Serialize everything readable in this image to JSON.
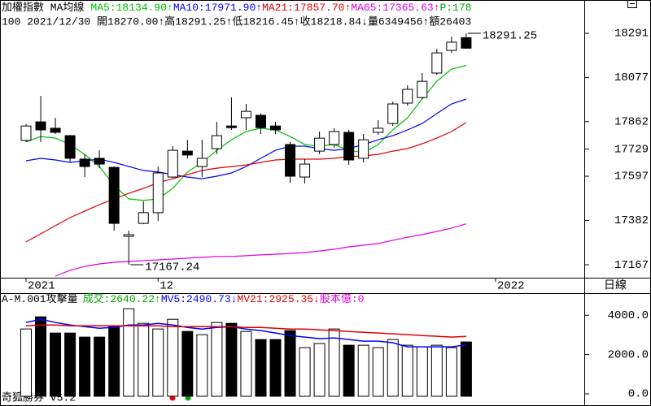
{
  "chart_data": [
    {
      "type": "candlestick",
      "title": "加權指數 MA均線",
      "info": "100 2021/12/30 開18270.00↑高18291.25↑低18216.45↑收18218.84↓量6349456↑額26403",
      "period": "日線",
      "extra_legend": {
        "text": "P:178",
        "color": "#00a800"
      },
      "annotations": [
        "18291.25",
        "17167.24"
      ],
      "categories": [
        "2021",
        null,
        null,
        null,
        null,
        null,
        null,
        null,
        null,
        "12",
        null,
        null,
        null,
        null,
        null,
        null,
        null,
        null,
        null,
        null,
        null,
        null,
        null,
        null,
        null,
        null,
        null,
        null,
        null,
        null,
        null,
        null,
        "2022",
        null,
        null,
        null,
        null,
        null,
        null
      ],
      "open": [
        17771,
        17861,
        17830,
        17794,
        17680,
        17684,
        17640,
        17305,
        17368,
        17420,
        17593,
        17719,
        17644,
        17731,
        17841,
        17881,
        17893,
        17841,
        17751,
        17593,
        17719,
        17751,
        17810,
        17684,
        17810,
        17853,
        17952,
        17979,
        18098,
        18208,
        18270.0,
        null,
        null,
        null,
        null,
        null,
        null,
        null,
        null
      ],
      "high": [
        17850,
        17987,
        17881,
        17798,
        17704,
        17723,
        17645,
        17333,
        17475,
        17644,
        17743,
        17774,
        17774,
        17861,
        17980,
        17948,
        17901,
        17861,
        17763,
        17680,
        17814,
        17830,
        17822,
        17802,
        17869,
        17960,
        18039,
        18098,
        18216,
        18275,
        18291.25,
        null,
        null,
        null,
        null,
        null,
        null,
        null,
        null
      ],
      "low": [
        17763,
        17763,
        17802,
        17664,
        17593,
        17636,
        17333,
        17167.24,
        17364,
        17380,
        17589,
        17684,
        17593,
        17704,
        17822,
        17822,
        17802,
        17802,
        17565,
        17562,
        17704,
        17735,
        17652,
        17664,
        17798,
        17841,
        17940,
        17972,
        18090,
        18196,
        18216.45,
        null,
        null,
        null,
        null,
        null,
        null,
        null,
        null
      ],
      "close": [
        17841,
        17822,
        17810,
        17684,
        17644,
        17656,
        17368,
        17313,
        17420,
        17613,
        17723,
        17700,
        17684,
        17794,
        17833,
        17912,
        17833,
        17822,
        17597,
        17656,
        17782,
        17814,
        17676,
        17774,
        17830,
        17948,
        18019,
        18058,
        18196,
        18248,
        18218.84,
        null,
        null,
        null,
        null,
        null,
        null,
        null,
        null
      ],
      "up_color": "#ffffff",
      "down_color": "#000000",
      "series": [
        {
          "name": "MA5:18134.90↑",
          "color": "#00c000",
          "values": [
            17763,
            17790,
            17782,
            17751,
            17703,
            17644,
            17553,
            17487,
            17479,
            17487,
            17538,
            17617,
            17664,
            17723,
            17774,
            17814,
            17830,
            17822,
            17790,
            17751,
            17743,
            17751,
            17723,
            17711,
            17751,
            17822,
            17881,
            17972,
            18058,
            18117,
            18134.9,
            null,
            null,
            null,
            null,
            null,
            null,
            null,
            null
          ]
        },
        {
          "name": "MA10:17971.90↑",
          "color": "#0000ff",
          "values": [
            17672,
            17684,
            17676,
            17664,
            17672,
            17680,
            17664,
            17644,
            17625,
            17617,
            17605,
            17593,
            17585,
            17597,
            17613,
            17644,
            17684,
            17723,
            17743,
            17743,
            17731,
            17723,
            17731,
            17751,
            17774,
            17794,
            17822,
            17853,
            17901,
            17948,
            17971.9,
            null,
            null,
            null,
            null,
            null,
            null,
            null,
            null
          ]
        },
        {
          "name": "MA21:17857.70↑",
          "color": "#e00000",
          "values": [
            17278,
            17317,
            17357,
            17396,
            17428,
            17459,
            17487,
            17514,
            17538,
            17565,
            17585,
            17605,
            17625,
            17636,
            17644,
            17652,
            17664,
            17676,
            17680,
            17680,
            17680,
            17684,
            17692,
            17696,
            17703,
            17719,
            17731,
            17755,
            17782,
            17814,
            17857.7,
            null,
            null,
            null,
            null,
            null,
            null,
            null,
            null
          ]
        },
        {
          "name": "MA65:17365.63↑",
          "color": "#e000e0",
          "values": [
            null,
            null,
            17112,
            17140,
            17159,
            17171,
            17179,
            17183,
            17187,
            17191,
            17195,
            17199,
            17203,
            17207,
            17207,
            17211,
            17215,
            17218,
            17222,
            17226,
            17234,
            17242,
            17254,
            17262,
            17270,
            17286,
            17301,
            17313,
            17329,
            17345,
            17365.63,
            null,
            null,
            null,
            null,
            null,
            null,
            null,
            null
          ]
        }
      ],
      "ylim": [
        17112,
        18374
      ],
      "yticks": [
        18291,
        18077,
        17862,
        17729,
        17597,
        17382,
        17167
      ]
    },
    {
      "type": "bar",
      "title": "A-M.001攻擊量",
      "volume_label": {
        "text": "成交:2640.22↑",
        "color": "#00a800"
      },
      "extra_legend": {
        "text": "股本億:0",
        "color": "#e000e0"
      },
      "footer": "奇狐勝券 v5.2",
      "values": [
        3300,
        3918,
        3093,
        3093,
        2887,
        2887,
        3423,
        4330,
        3588,
        3300,
        3794,
        3175,
        3010,
        3629,
        3588,
        3175,
        2763,
        2763,
        3217,
        2351,
        2557,
        3300,
        2474,
        2474,
        2351,
        2763,
        2474,
        2392,
        2474,
        2351,
        2640.22
      ],
      "series": [
        {
          "name": "MV5:2490.73↓",
          "color": "#0000ff",
          "values": [
            3629,
            3794,
            3629,
            3505,
            3423,
            3340,
            3382,
            3505,
            3505,
            3588,
            3505,
            3382,
            3299,
            3382,
            3423,
            3299,
            3217,
            3093,
            2969,
            2887,
            2804,
            2846,
            2763,
            2681,
            2681,
            2598,
            2392,
            2392,
            2392,
            2392,
            2490.73
          ]
        },
        {
          "name": "MV21:2925.35↓",
          "color": "#e00000",
          "values": [
            3464,
            3505,
            3505,
            3464,
            3464,
            3464,
            3464,
            3464,
            3464,
            3464,
            3423,
            3423,
            3423,
            3423,
            3423,
            3382,
            3382,
            3340,
            3299,
            3299,
            3258,
            3217,
            3175,
            3134,
            3093,
            3052,
            3011,
            2969,
            2928,
            2887,
            2925.35
          ]
        }
      ],
      "ylim": [
        0,
        5000
      ],
      "yticks": [
        {
          "value": 4000,
          "label": "4000.0"
        },
        {
          "value": 2000,
          "label": "2000.0"
        },
        {
          "value": 0,
          "label": "0.0"
        }
      ]
    }
  ]
}
